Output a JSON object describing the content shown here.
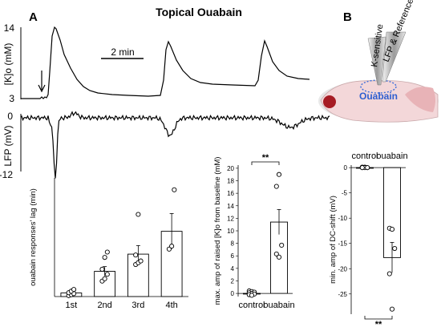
{
  "title": "Topical Ouabain",
  "panel_a": "A",
  "panel_b": "B",
  "traces": {
    "k_ylabel": "[K]o (mM)",
    "k_tick_top": "14",
    "k_tick_bottom": "3",
    "lfp_ylabel": "LFP (mV)",
    "lfp_tick_top": "0",
    "lfp_tick_bottom": "-12",
    "scale_bar": "2 min"
  },
  "diagram": {
    "electrode_1": "K-sensitive",
    "electrode_2": "LFP & Reference",
    "drug": "Ouabain"
  },
  "chart_data": [
    {
      "type": "bar",
      "ylabel": "ouabain responses' lag (min)",
      "categories": [
        "1st",
        "2nd",
        "3rd",
        "4th"
      ],
      "values": [
        1.2,
        8.5,
        14.3,
        22
      ],
      "errors": [
        0.6,
        1.6,
        2.9,
        6
      ],
      "points": [
        [
          0.3,
          0.6,
          1.0,
          1.3,
          1.8,
          2.4
        ],
        [
          5.2,
          6.0,
          7.5,
          9.2,
          13.2,
          15.0
        ],
        [
          10.8,
          11.4,
          12.0,
          14.0,
          27.7
        ],
        [
          16.0,
          17.0,
          36.0
        ]
      ],
      "ylim": [
        0,
        40
      ],
      "grid": false
    },
    {
      "type": "bar",
      "ylabel": "max. amp of raised [K]o from baseline (mM)",
      "categories": [
        "control",
        "ouabain"
      ],
      "values": [
        0,
        11.4
      ],
      "errors": [
        0.1,
        2
      ],
      "points": [
        [
          0.4,
          0.3,
          0.2,
          0.1,
          0.0,
          -0.1,
          -0.2,
          -0.3
        ],
        [
          6.3,
          5.8,
          7.7,
          17.1,
          19.0
        ]
      ],
      "yticks": [
        0,
        2,
        4,
        6,
        8,
        10,
        12,
        14,
        16,
        18,
        20
      ],
      "ylim": [
        -0.5,
        20.5
      ],
      "significance": "**"
    },
    {
      "type": "bar",
      "ylabel": "min. amp of DC-shift (mV)",
      "categories": [
        "control",
        "ouabain"
      ],
      "values": [
        0,
        -17.8
      ],
      "errors": [
        0.1,
        3
      ],
      "points": [
        [
          0.1,
          0.1,
          0,
          0,
          0,
          0,
          0
        ],
        [
          -12,
          -12.2,
          -16,
          -21,
          -28
        ]
      ],
      "yticks": [
        0,
        -5,
        -10,
        -15,
        -20,
        -25
      ],
      "ylim": [
        -29,
        0.5
      ],
      "significance": "**"
    }
  ]
}
